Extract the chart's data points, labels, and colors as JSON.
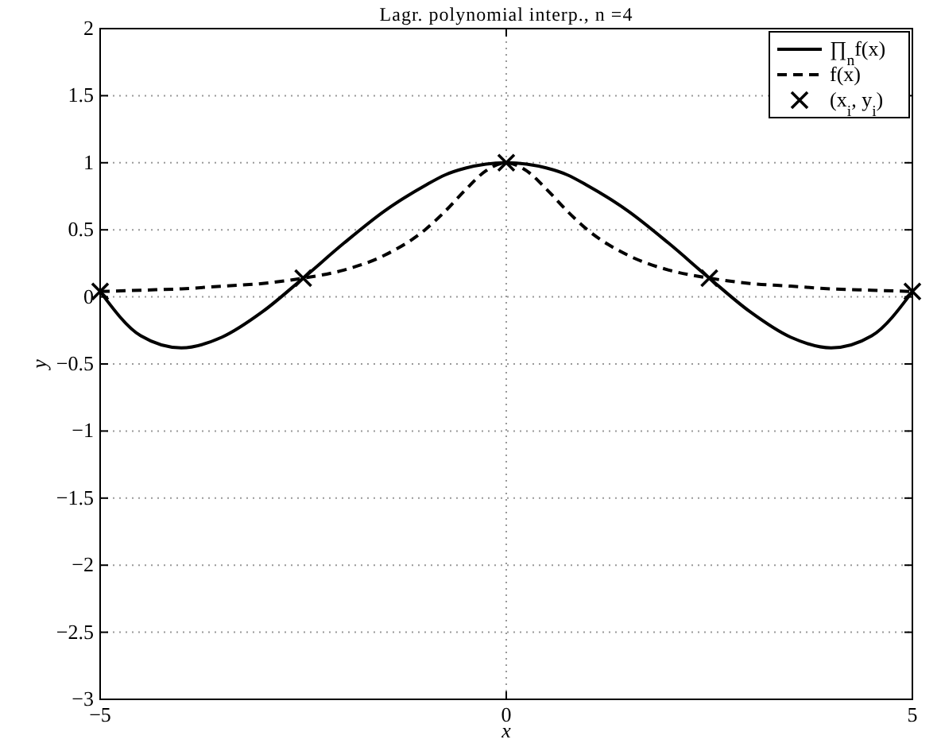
{
  "chart_data": {
    "type": "line",
    "title": "Lagr. polynomial interp., n =4",
    "xlabel": "x",
    "ylabel": "y",
    "xlim": [
      -5,
      5
    ],
    "ylim": [
      -3,
      2
    ],
    "xticks": [
      {
        "value": -5,
        "label": "−5"
      },
      0,
      5
    ],
    "yticks": [
      {
        "value": -3,
        "label": "−3"
      },
      {
        "value": -2.5,
        "label": "−2.5"
      },
      {
        "value": -2,
        "label": "−2"
      },
      {
        "value": -1.5,
        "label": "−1.5"
      },
      {
        "value": -1,
        "label": "−1"
      },
      {
        "value": -0.5,
        "label": "−0.5"
      },
      0,
      0.5,
      1,
      1.5,
      2
    ],
    "grid": true,
    "legend": "top right",
    "series": [
      {
        "name": "∏$_{n}$f(x)",
        "color": "#000000",
        "line_style": "solid",
        "x": [
          -5,
          -4.5,
          -4,
          -3.5,
          -3,
          -2.5,
          -2,
          -1.5,
          -1,
          -0.75,
          -0.5,
          -0.25,
          0,
          0.25,
          0.5,
          0.75,
          1,
          1.5,
          2,
          2.5,
          3,
          3.5,
          4,
          4.5,
          5
        ],
        "values": [
          0.04,
          -0.29,
          -0.38,
          -0.3,
          -0.11,
          0.14,
          0.4,
          0.64,
          0.83,
          0.91,
          0.96,
          0.99,
          1,
          0.99,
          0.96,
          0.91,
          0.83,
          0.64,
          0.4,
          0.14,
          -0.11,
          -0.3,
          -0.38,
          -0.29,
          0.04
        ]
      },
      {
        "name": "f(x)",
        "color": "#000000",
        "line_style": "dashed",
        "x": [
          -5,
          -4.5,
          -4,
          -3.5,
          -3,
          -2.5,
          -2,
          -1.5,
          -1,
          -0.75,
          -0.5,
          -0.25,
          0,
          0.25,
          0.5,
          0.75,
          1,
          1.5,
          2,
          2.5,
          3,
          3.5,
          4,
          4.5,
          5
        ],
        "values": [
          0.04,
          0.05,
          0.06,
          0.08,
          0.1,
          0.14,
          0.2,
          0.31,
          0.5,
          0.64,
          0.8,
          0.94,
          1,
          0.94,
          0.8,
          0.64,
          0.5,
          0.31,
          0.2,
          0.14,
          0.1,
          0.08,
          0.06,
          0.05,
          0.04
        ]
      },
      {
        "name": "(x$_{i}$, y$_{i}$)",
        "color": "#000000",
        "type": "scatter",
        "marker": "cross",
        "x": [
          -5,
          -2.5,
          0,
          2.5,
          5
        ],
        "values": [
          0.04,
          0.14,
          1,
          0.14,
          0.04
        ]
      }
    ]
  }
}
